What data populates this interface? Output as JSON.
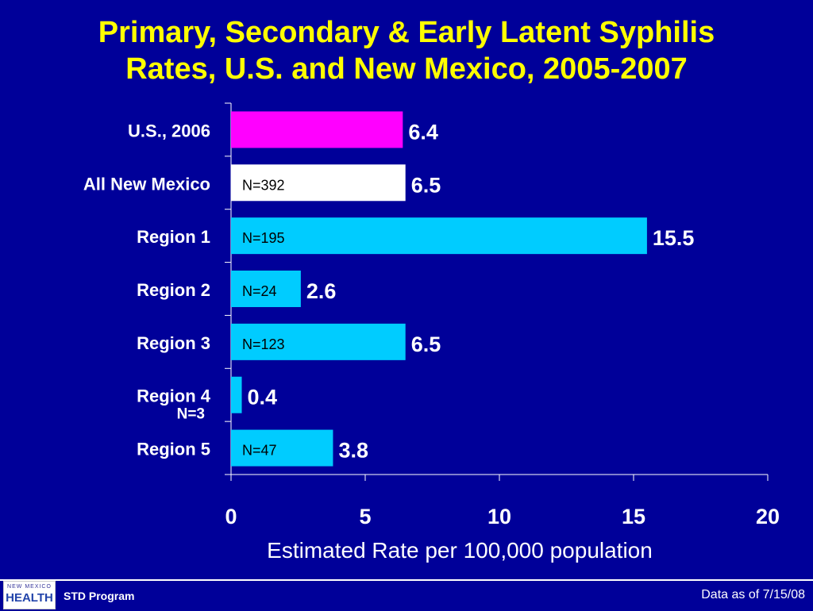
{
  "title_line1": "Primary, Secondary & Early Latent Syphilis",
  "title_line2": "Rates, U.S. and New Mexico, 2005-2007",
  "footer": {
    "program": "STD Program",
    "data_date": "Data as of 7/15/08",
    "logo_top": "NEW MEXICO",
    "logo_main": "HEALTH"
  },
  "colors": {
    "background": "#000099",
    "title": "#ffff00",
    "us_bar": "#ff00ff",
    "nm_bar": "#ffffff",
    "region_bar": "#00ccff"
  },
  "chart_data": {
    "type": "bar",
    "orientation": "horizontal",
    "categories": [
      "U.S., 2006",
      "All New Mexico",
      "Region 1",
      "Region 2",
      "Region 3",
      "Region 4",
      "Region 5"
    ],
    "values": [
      6.4,
      6.5,
      15.5,
      2.6,
      6.5,
      0.4,
      3.8
    ],
    "value_labels": [
      "6.4",
      "6.5",
      "15.5",
      "2.6",
      "6.5",
      "0.4",
      "3.8"
    ],
    "n_labels": [
      "",
      "N=392",
      "N=195",
      "N=24",
      "N=123",
      "N=3",
      "N=47"
    ],
    "bar_colors": [
      "#ff00ff",
      "#ffffff",
      "#00ccff",
      "#00ccff",
      "#00ccff",
      "#00ccff",
      "#00ccff"
    ],
    "xlabel": "Estimated Rate per 100,000 population",
    "xlim": [
      0,
      20
    ],
    "xticks": [
      0,
      5,
      10,
      15,
      20
    ],
    "grid": false
  }
}
